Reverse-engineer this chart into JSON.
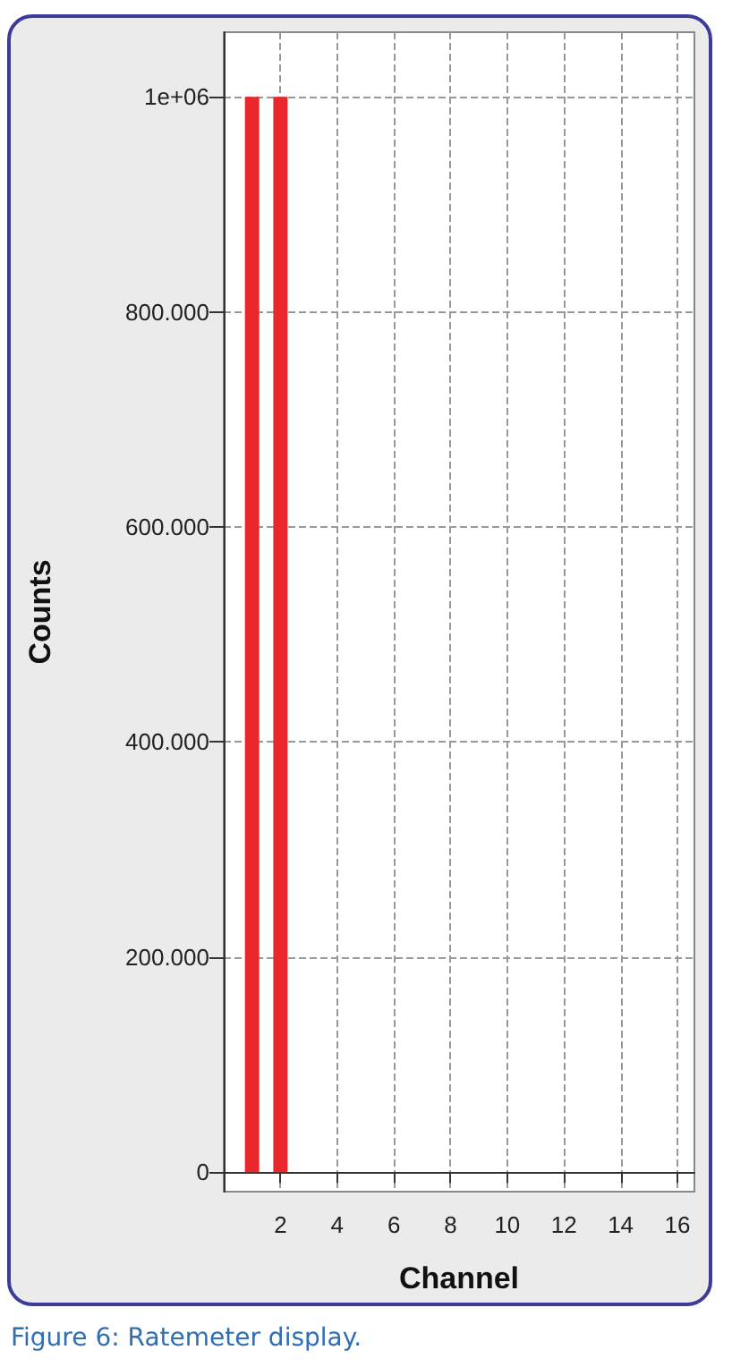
{
  "chart_data": {
    "type": "bar",
    "xlabel": "Channel",
    "ylabel": "Counts",
    "x": [
      1,
      2
    ],
    "values": [
      1000000,
      1000000
    ],
    "color": "#e8282a",
    "xlim": [
      0,
      16.6
    ],
    "xticks": [
      2,
      4,
      6,
      8,
      10,
      12,
      14,
      16
    ],
    "ylim": [
      -18000,
      1060000
    ],
    "yticks": [
      0,
      {
        "value": 200000,
        "label": "200.000"
      },
      {
        "value": 400000,
        "label": "400.000"
      },
      {
        "value": 600000,
        "label": "600.000"
      },
      {
        "value": 800000,
        "label": "800.000"
      },
      {
        "value": 1000000,
        "label": "1e+06"
      }
    ],
    "grid": true,
    "annotations": [
      "Figure 6: Ratemeter display."
    ]
  }
}
